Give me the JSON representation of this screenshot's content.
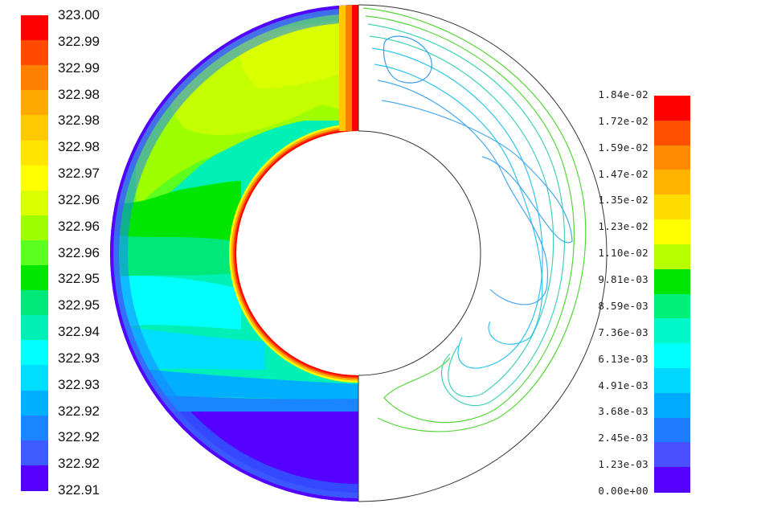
{
  "left_legend": {
    "labels": [
      "323.00",
      "322.99",
      "322.99",
      "322.98",
      "322.98",
      "322.98",
      "322.97",
      "322.96",
      "322.96",
      "322.96",
      "322.95",
      "322.95",
      "322.94",
      "322.93",
      "322.93",
      "322.92",
      "322.92",
      "322.92",
      "322.91"
    ],
    "colors": [
      "#ff0000",
      "#ff4a00",
      "#ff8000",
      "#ffaa00",
      "#ffc800",
      "#ffe600",
      "#ffff00",
      "#d9ff00",
      "#9dff00",
      "#5cff1e",
      "#00e600",
      "#00e87a",
      "#00f0b5",
      "#00ffff",
      "#00deff",
      "#00b0ff",
      "#1a85ff",
      "#3d5cff",
      "#5500ff"
    ]
  },
  "right_legend": {
    "labels": [
      "1.84e-02",
      "1.72e-02",
      "1.59e-02",
      "1.47e-02",
      "1.35e-02",
      "1.23e-02",
      "1.10e-02",
      "9.81e-03",
      "8.59e-03",
      "7.36e-03",
      "6.13e-03",
      "4.91e-03",
      "3.68e-03",
      "2.45e-03",
      "1.23e-03",
      "0.00e+00"
    ],
    "colors": [
      "#ff0000",
      "#ff5000",
      "#ff8a00",
      "#ffb400",
      "#ffdc00",
      "#ffff00",
      "#b8ff00",
      "#00e600",
      "#00f07a",
      "#00f7c8",
      "#00ffff",
      "#00d8ff",
      "#00aaff",
      "#1f7cff",
      "#4a50ff",
      "#5500ff"
    ]
  },
  "colors": {
    "outline": "#333333",
    "contour_green": "#55d63a",
    "contour_teal": "#3fd1b8",
    "contour_cyan": "#2ec5ef",
    "contour_blue": "#4aa8ee"
  }
}
